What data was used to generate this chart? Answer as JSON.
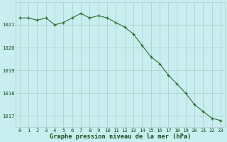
{
  "x": [
    0,
    1,
    2,
    3,
    4,
    5,
    6,
    7,
    8,
    9,
    10,
    11,
    12,
    13,
    14,
    15,
    16,
    17,
    18,
    19,
    20,
    21,
    22,
    23
  ],
  "y": [
    1021.3,
    1021.3,
    1021.2,
    1021.3,
    1021.0,
    1021.1,
    1021.3,
    1021.5,
    1021.3,
    1021.4,
    1021.3,
    1021.1,
    1020.9,
    1020.6,
    1020.1,
    1019.6,
    1019.3,
    1018.8,
    1018.4,
    1018.0,
    1017.5,
    1017.2,
    1016.9,
    1016.8
  ],
  "line_color": "#2d6e2d",
  "marker_color": "#2d6e2d",
  "bg_color": "#c8eef0",
  "grid_color": "#b0c8cc",
  "title_color": "#1a4a1a",
  "xlabel": "Graphe pression niveau de la mer (hPa)",
  "ylim_min": 1016.5,
  "ylim_max": 1022.0,
  "yticks": [
    1017,
    1018,
    1019,
    1020,
    1021
  ],
  "xticks": [
    0,
    1,
    2,
    3,
    4,
    5,
    6,
    7,
    8,
    9,
    10,
    11,
    12,
    13,
    14,
    15,
    16,
    17,
    18,
    19,
    20,
    21,
    22,
    23
  ],
  "tick_fontsize": 5.2,
  "label_fontsize": 6.2
}
